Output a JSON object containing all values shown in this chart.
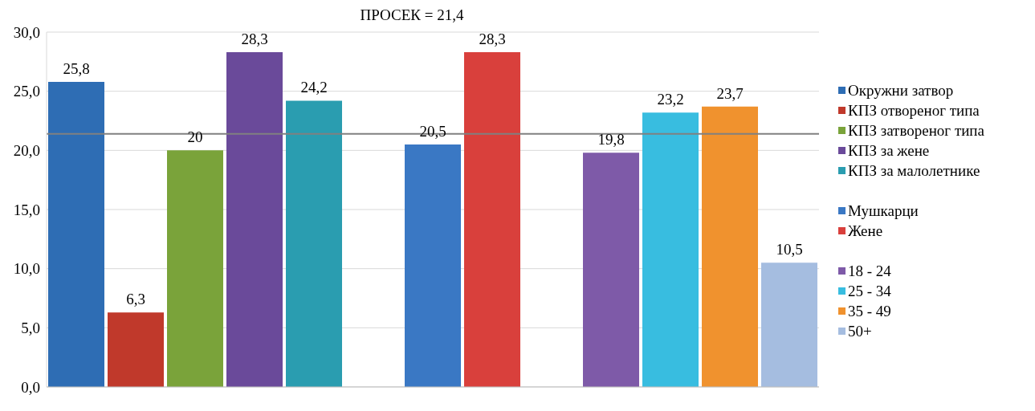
{
  "chart_data": {
    "type": "bar",
    "title": "ПРОСЕК = 21,4",
    "categories": [
      null,
      null,
      null,
      null,
      null,
      null,
      null,
      null,
      null,
      null,
      null,
      null,
      null
    ],
    "series": [
      {
        "name": "Окружни затвор",
        "color": "#2e6db4",
        "values": [
          25.8,
          null,
          null,
          null,
          null,
          null,
          null,
          null,
          null,
          null,
          null,
          null,
          null
        ],
        "value_labels": [
          "25,8",
          null,
          null,
          null,
          null,
          null,
          null,
          null,
          null,
          null,
          null,
          null,
          null
        ]
      },
      {
        "name": "КПЗ отвореног типа",
        "color": "#c0392b",
        "values": [
          null,
          6.3,
          null,
          null,
          null,
          null,
          null,
          null,
          null,
          null,
          null,
          null,
          null
        ],
        "value_labels": [
          null,
          "6,3",
          null,
          null,
          null,
          null,
          null,
          null,
          null,
          null,
          null,
          null,
          null
        ]
      },
      {
        "name": "КПЗ затвореног типа",
        "color": "#7aa33a",
        "values": [
          null,
          null,
          20,
          null,
          null,
          null,
          null,
          null,
          null,
          null,
          null,
          null,
          null
        ],
        "value_labels": [
          null,
          null,
          "20",
          null,
          null,
          null,
          null,
          null,
          null,
          null,
          null,
          null,
          null
        ]
      },
      {
        "name": "КПЗ за жене",
        "color": "#6a4a9a",
        "values": [
          null,
          null,
          null,
          28.3,
          null,
          null,
          null,
          null,
          null,
          null,
          null,
          null,
          null
        ],
        "value_labels": [
          null,
          null,
          null,
          "28,3",
          null,
          null,
          null,
          null,
          null,
          null,
          null,
          null,
          null
        ]
      },
      {
        "name": "КПЗ за малолетнике",
        "color": "#2a9db0",
        "values": [
          null,
          null,
          null,
          null,
          24.2,
          null,
          null,
          null,
          null,
          null,
          null,
          null,
          null
        ],
        "value_labels": [
          null,
          null,
          null,
          null,
          "24,2",
          null,
          null,
          null,
          null,
          null,
          null,
          null,
          null
        ]
      },
      {
        "name": "Мушкарци",
        "color": "#3a78c4",
        "values": [
          null,
          null,
          null,
          null,
          null,
          null,
          20.5,
          null,
          null,
          null,
          null,
          null,
          null
        ],
        "value_labels": [
          null,
          null,
          null,
          null,
          null,
          null,
          "20,5",
          null,
          null,
          null,
          null,
          null,
          null
        ]
      },
      {
        "name": "Жене",
        "color": "#d9403c",
        "values": [
          null,
          null,
          null,
          null,
          null,
          null,
          null,
          28.3,
          null,
          null,
          null,
          null,
          null
        ],
        "value_labels": [
          null,
          null,
          null,
          null,
          null,
          null,
          null,
          "28,3",
          null,
          null,
          null,
          null,
          null
        ]
      },
      {
        "name": "18 - 24",
        "color": "#7e5aa8",
        "values": [
          null,
          null,
          null,
          null,
          null,
          null,
          null,
          null,
          null,
          19.8,
          null,
          null,
          null
        ],
        "value_labels": [
          null,
          null,
          null,
          null,
          null,
          null,
          null,
          null,
          null,
          "19,8",
          null,
          null,
          null
        ]
      },
      {
        "name": "25 - 34",
        "color": "#38bde0",
        "values": [
          null,
          null,
          null,
          null,
          null,
          null,
          null,
          null,
          null,
          null,
          23.2,
          null,
          null
        ],
        "value_labels": [
          null,
          null,
          null,
          null,
          null,
          null,
          null,
          null,
          null,
          null,
          "23,2",
          null,
          null
        ]
      },
      {
        "name": "35 - 49",
        "color": "#f0922e",
        "values": [
          null,
          null,
          null,
          null,
          null,
          null,
          null,
          null,
          null,
          null,
          null,
          23.7,
          null
        ],
        "value_labels": [
          null,
          null,
          null,
          null,
          null,
          null,
          null,
          null,
          null,
          null,
          null,
          "23,7",
          null
        ]
      },
      {
        "name": "50+",
        "color": "#a5bde0",
        "values": [
          null,
          null,
          null,
          null,
          null,
          null,
          null,
          null,
          null,
          null,
          null,
          null,
          10.5
        ],
        "value_labels": [
          null,
          null,
          null,
          null,
          null,
          null,
          null,
          null,
          null,
          null,
          null,
          null,
          "10,5"
        ]
      }
    ],
    "ylim": [
      0,
      30
    ],
    "yticks": [
      {
        "value": 0,
        "label": "0,0"
      },
      {
        "value": 5,
        "label": "5,0"
      },
      {
        "value": 10,
        "label": "10,0"
      },
      {
        "value": 15,
        "label": "15,0"
      },
      {
        "value": 20,
        "label": "20,0"
      },
      {
        "value": 25,
        "label": "25,0"
      },
      {
        "value": 30,
        "label": "30,0"
      }
    ],
    "ref_lines": [
      {
        "axis": "y",
        "value": 21.4,
        "color": "#808080"
      }
    ],
    "grid": "y",
    "legend": "right",
    "tick_labels": "y"
  }
}
